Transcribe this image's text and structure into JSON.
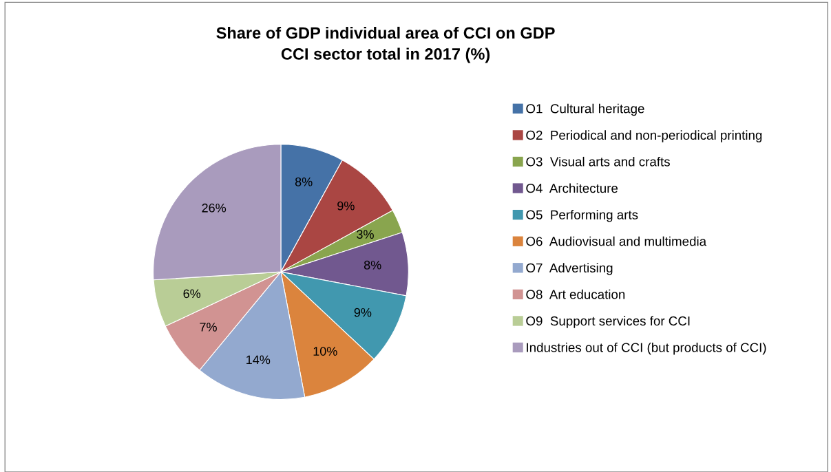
{
  "chart_data": {
    "type": "pie",
    "title": "Share of GDP individual area of CCI on GDP\nCCI sector total in 2017 (%)",
    "categories": [
      "O1  Cultural heritage",
      "O2  Periodical and non-periodical printing",
      "O3  Visual arts and crafts",
      "O4  Architecture",
      "O5  Performing arts",
      "O6  Audiovisual and multimedia",
      "O7  Advertising",
      "O8  Art education",
      "O9  Support services for CCI",
      "Industries out of CCI (but products of CCI)"
    ],
    "values": [
      8,
      9,
      3,
      8,
      9,
      10,
      14,
      7,
      6,
      26
    ],
    "value_labels": [
      "8%",
      "9%",
      "3%",
      "8%",
      "9%",
      "10%",
      "14%",
      "7%",
      "6%",
      "26%"
    ],
    "colors": [
      "#4572a7",
      "#aa4643",
      "#89a54e",
      "#71588f",
      "#4198af",
      "#db843d",
      "#93a9cf",
      "#d19392",
      "#b9cd96",
      "#a99bbd"
    ],
    "legend": "right"
  }
}
